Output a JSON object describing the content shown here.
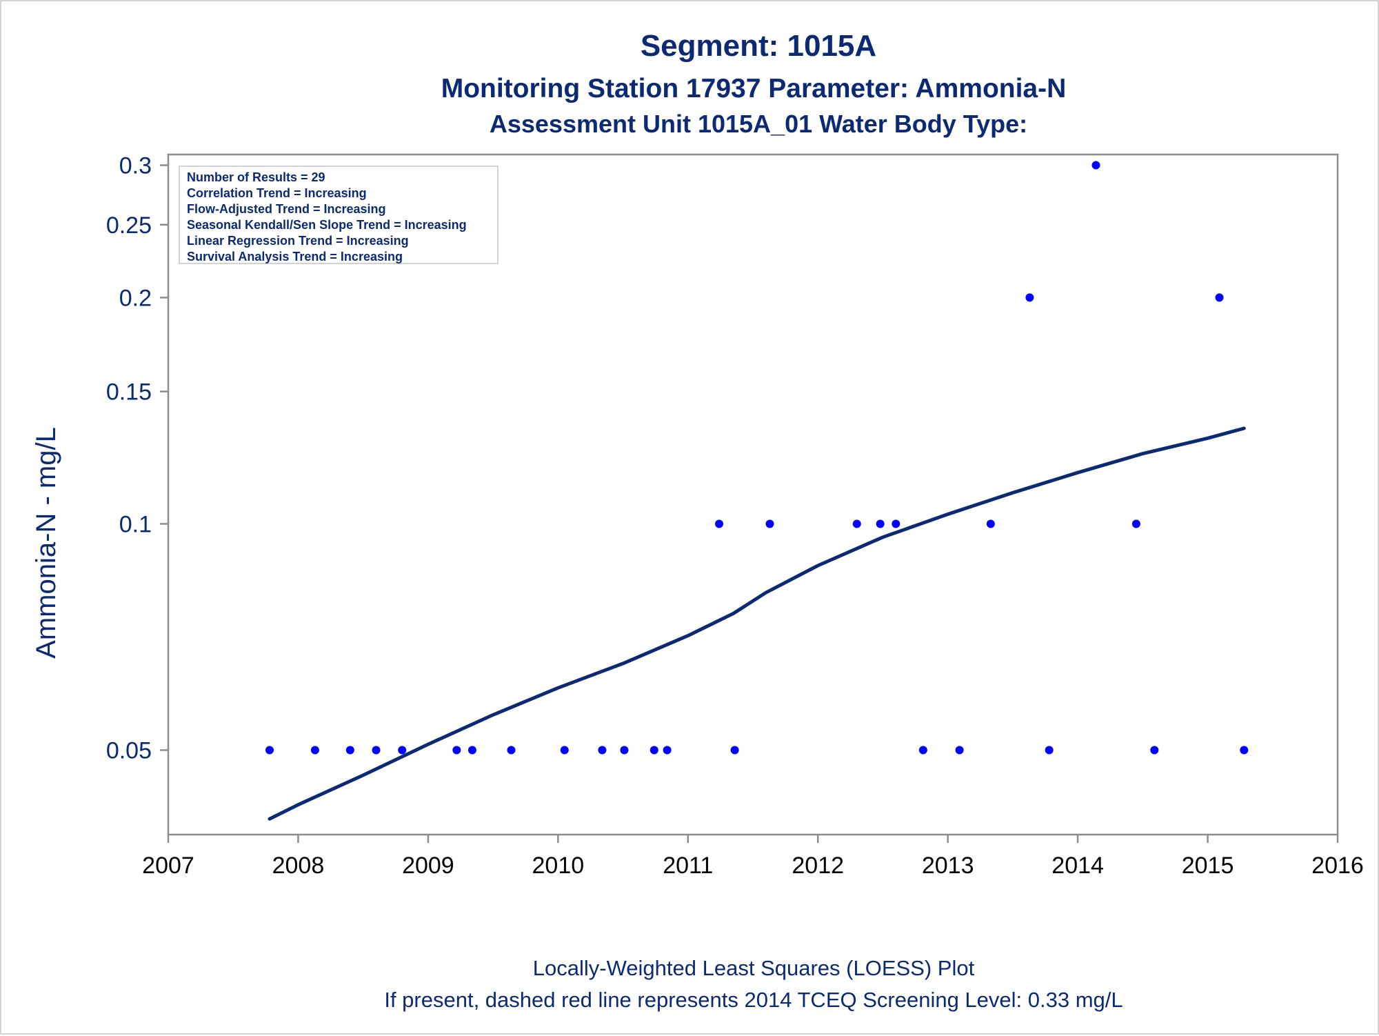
{
  "colors": {
    "title": "#0b2a73",
    "axis": "#8c8c8c",
    "tick_text": "#0b2a73",
    "points": "#0000ff",
    "loess_line": "#0b2a73",
    "legend_border": "#d3d3d3"
  },
  "titles": {
    "line1": "Segment: 1015A",
    "line2": "Monitoring Station 17937 Parameter: Ammonia-N",
    "line3": "Assessment Unit 1015A_01   Water Body Type:"
  },
  "legend": {
    "lines": [
      "Number of Results = 29",
      "Correlation Trend = Increasing",
      "Flow-Adjusted Trend = Increasing",
      "Seasonal Kendall/Sen Slope Trend = Increasing",
      "Linear Regression Trend = Increasing",
      "Survival Analysis Trend = Increasing"
    ]
  },
  "footnotes": {
    "line1": "Locally-Weighted Least Squares (LOESS) Plot",
    "line2": "If present, dashed red line represents 2014 TCEQ Screening Level: 0.33 mg/L"
  },
  "chart_data": {
    "type": "scatter",
    "ylabel": "Ammonia-N - mg/L",
    "xlabel": "",
    "xlim": [
      2007,
      2016
    ],
    "ylim": [
      0.0386,
      0.31
    ],
    "y_scale": "log",
    "x_ticks": [
      "2007",
      "2008",
      "2009",
      "2010",
      "2011",
      "2012",
      "2013",
      "2014",
      "2015",
      "2016"
    ],
    "y_ticks": [
      "0.05",
      "0.1",
      "0.15",
      "0.2",
      "0.25",
      "0.3"
    ],
    "grid": false,
    "legend_position": "top-left",
    "series": [
      {
        "points": [
          [
            2007.78,
            0.05
          ],
          [
            2008.13,
            0.05
          ],
          [
            2008.4,
            0.05
          ],
          [
            2008.6,
            0.05
          ],
          [
            2008.8,
            0.05
          ],
          [
            2009.22,
            0.05
          ],
          [
            2009.34,
            0.05
          ],
          [
            2009.64,
            0.05
          ],
          [
            2010.05,
            0.05
          ],
          [
            2010.34,
            0.05
          ],
          [
            2010.51,
            0.05
          ],
          [
            2010.74,
            0.05
          ],
          [
            2010.84,
            0.05
          ],
          [
            2011.24,
            0.1
          ],
          [
            2011.36,
            0.05
          ],
          [
            2011.63,
            0.1
          ],
          [
            2012.3,
            0.1
          ],
          [
            2012.48,
            0.1
          ],
          [
            2012.6,
            0.1
          ],
          [
            2012.81,
            0.05
          ],
          [
            2013.09,
            0.05
          ],
          [
            2013.33,
            0.1
          ],
          [
            2013.63,
            0.2
          ],
          [
            2013.78,
            0.05
          ],
          [
            2014.14,
            0.3
          ],
          [
            2014.45,
            0.1
          ],
          [
            2014.59,
            0.05
          ],
          [
            2015.09,
            0.2
          ],
          [
            2015.28,
            0.05
          ]
        ]
      },
      {
        "type": "line",
        "points": [
          [
            2007.78,
            0.0405
          ],
          [
            2008.0,
            0.0423
          ],
          [
            2008.5,
            0.0463
          ],
          [
            2009.0,
            0.0509
          ],
          [
            2009.5,
            0.0557
          ],
          [
            2010.0,
            0.0605
          ],
          [
            2010.5,
            0.0652
          ],
          [
            2011.0,
            0.071
          ],
          [
            2011.35,
            0.076
          ],
          [
            2011.6,
            0.081
          ],
          [
            2012.0,
            0.088
          ],
          [
            2012.5,
            0.096
          ],
          [
            2013.0,
            0.103
          ],
          [
            2013.5,
            0.11
          ],
          [
            2014.0,
            0.117
          ],
          [
            2014.5,
            0.124
          ],
          [
            2015.0,
            0.13
          ],
          [
            2015.28,
            0.134
          ]
        ]
      }
    ]
  }
}
